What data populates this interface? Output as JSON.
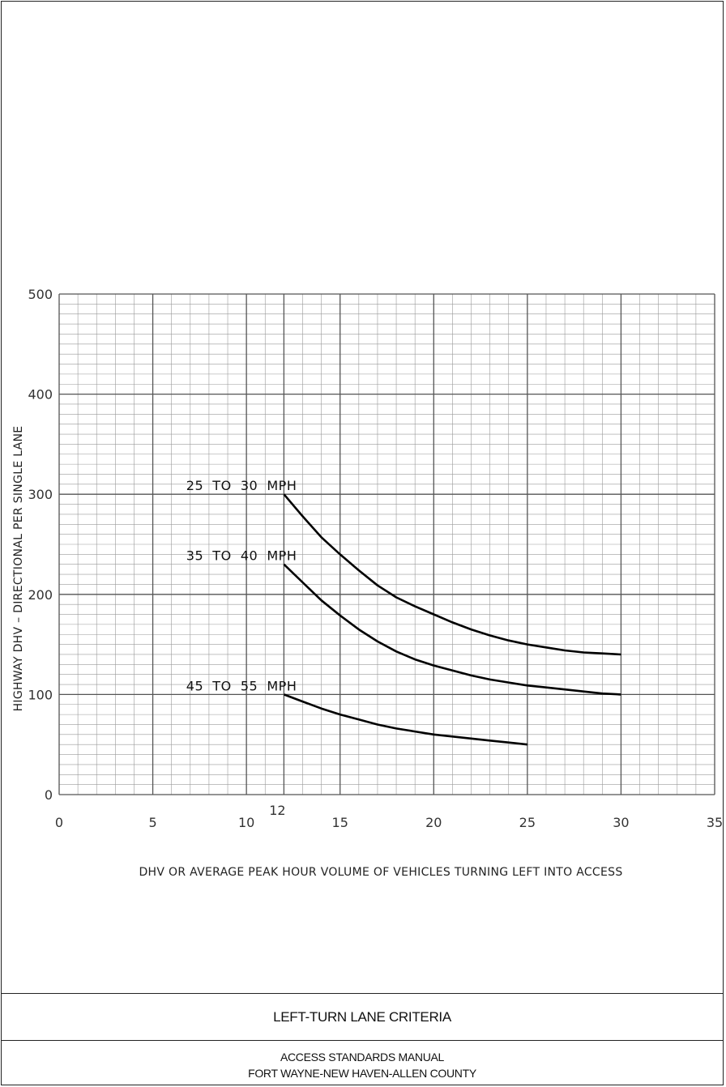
{
  "chart_data": {
    "type": "line",
    "xlabel": "DHV OR AVERAGE PEAK HOUR VOLUME OF VEHICLES TURNING LEFT INTO ACCESS",
    "ylabel": "HIGHWAY DHV  –  DIRECTIONAL PER SINGLE LANE",
    "xlim": [
      0,
      35
    ],
    "ylim": [
      0,
      500
    ],
    "x_ticks": [
      "0",
      "5",
      "10",
      "15",
      "20",
      "25",
      "30",
      "35"
    ],
    "x_extra_tick": "12",
    "y_ticks": [
      "0",
      "100",
      "200",
      "300",
      "400",
      "500"
    ],
    "grid": true,
    "series": [
      {
        "name": "25  TO  30  MPH",
        "x": [
          12,
          13,
          14,
          15,
          16,
          17,
          18,
          19,
          20,
          21,
          22,
          23,
          24,
          25,
          26,
          27,
          28,
          29,
          30
        ],
        "values": [
          300,
          278,
          257,
          240,
          224,
          209,
          197,
          188,
          180,
          172,
          165,
          159,
          154,
          150,
          147,
          144,
          142,
          141,
          140
        ]
      },
      {
        "name": "35  TO  40  MPH",
        "x": [
          12,
          13,
          14,
          15,
          16,
          17,
          18,
          19,
          20,
          21,
          22,
          23,
          24,
          25,
          26,
          27,
          28,
          29,
          30
        ],
        "values": [
          230,
          212,
          194,
          179,
          165,
          153,
          143,
          135,
          129,
          124,
          119,
          115,
          112,
          109,
          107,
          105,
          103,
          101,
          100
        ]
      },
      {
        "name": "45  TO  55  MPH",
        "x": [
          12,
          13,
          14,
          15,
          16,
          17,
          18,
          19,
          20,
          21,
          22,
          23,
          24,
          25
        ],
        "values": [
          100,
          93,
          86,
          80,
          75,
          70,
          66,
          63,
          60,
          58,
          56,
          54,
          52,
          50
        ]
      }
    ]
  },
  "title_block": {
    "title": "LEFT-TURN LANE CRITERIA",
    "line1": "ACCESS STANDARDS MANUAL",
    "line2": "FORT WAYNE-NEW HAVEN-ALLEN COUNTY"
  }
}
